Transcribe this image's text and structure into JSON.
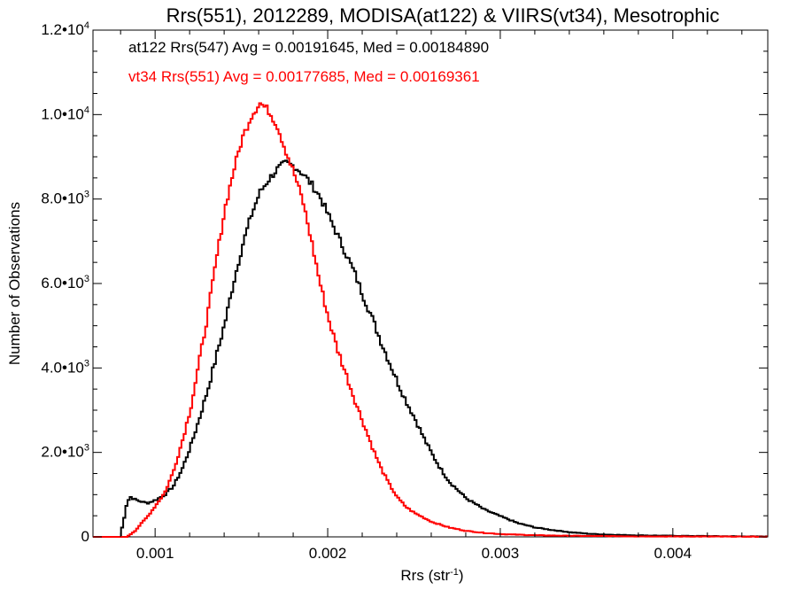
{
  "chart_data": {
    "type": "line",
    "title": "Rrs(551), 2012289, MODISA(at122) & VIIRS(vt34), Mesotrophic",
    "xlabel": "Rrs (str",
    "xlabel_sup": "-1",
    "xlabel_tail": ")",
    "ylabel": "Number of Observations",
    "xlim": [
      0.00064,
      0.00455
    ],
    "ylim": [
      0,
      12000
    ],
    "x_ticks": [
      {
        "value": 0.001,
        "label": "0.001"
      },
      {
        "value": 0.002,
        "label": "0.002"
      },
      {
        "value": 0.003,
        "label": "0.003"
      },
      {
        "value": 0.004,
        "label": "0.004"
      }
    ],
    "y_ticks": [
      {
        "value": 0,
        "label": "0",
        "sup": ""
      },
      {
        "value": 2000,
        "label": "2.0•10",
        "sup": "3"
      },
      {
        "value": 4000,
        "label": "4.0•10",
        "sup": "3"
      },
      {
        "value": 6000,
        "label": "6.0•10",
        "sup": "3"
      },
      {
        "value": 8000,
        "label": "8.0•10",
        "sup": "3"
      },
      {
        "value": 10000,
        "label": "1.0•10",
        "sup": "4"
      },
      {
        "value": 12000,
        "label": "1.2•10",
        "sup": "4"
      }
    ],
    "annotations": [
      {
        "text": "at122 Rrs(547) Avg = 0.00191645, Med = 0.00184890",
        "color": "#000000"
      },
      {
        "text": "vt34 Rrs(551) Avg = 0.00177685, Med = 0.00169361",
        "color": "#ff0000"
      }
    ],
    "series": [
      {
        "name": "at122 Rrs(547)",
        "color": "#000000",
        "points": [
          [
            0.00079,
            0
          ],
          [
            0.00081,
            350
          ],
          [
            0.00083,
            800
          ],
          [
            0.00085,
            950
          ],
          [
            0.00087,
            900
          ],
          [
            0.0009,
            850
          ],
          [
            0.00095,
            800
          ],
          [
            0.001,
            880
          ],
          [
            0.00105,
            1000
          ],
          [
            0.0011,
            1200
          ],
          [
            0.00115,
            1600
          ],
          [
            0.0012,
            2150
          ],
          [
            0.00125,
            2800
          ],
          [
            0.0013,
            3500
          ],
          [
            0.00135,
            4300
          ],
          [
            0.0014,
            5100
          ],
          [
            0.00145,
            6050
          ],
          [
            0.0015,
            6900
          ],
          [
            0.00155,
            7600
          ],
          [
            0.0016,
            8150
          ],
          [
            0.00165,
            8450
          ],
          [
            0.0017,
            8700
          ],
          [
            0.00175,
            8850
          ],
          [
            0.0018,
            8780
          ],
          [
            0.00185,
            8600
          ],
          [
            0.0019,
            8350
          ],
          [
            0.00195,
            8050
          ],
          [
            0.002,
            7600
          ],
          [
            0.00205,
            7150
          ],
          [
            0.0021,
            6700
          ],
          [
            0.00215,
            6250
          ],
          [
            0.0022,
            5700
          ],
          [
            0.00225,
            5200
          ],
          [
            0.0023,
            4650
          ],
          [
            0.00235,
            4150
          ],
          [
            0.0024,
            3650
          ],
          [
            0.00245,
            3200
          ],
          [
            0.0025,
            2800
          ],
          [
            0.00255,
            2350
          ],
          [
            0.0026,
            1950
          ],
          [
            0.00265,
            1600
          ],
          [
            0.0027,
            1300
          ],
          [
            0.00275,
            1100
          ],
          [
            0.0028,
            900
          ],
          [
            0.00285,
            780
          ],
          [
            0.0029,
            650
          ],
          [
            0.003,
            480
          ],
          [
            0.0031,
            320
          ],
          [
            0.0032,
            220
          ],
          [
            0.0033,
            160
          ],
          [
            0.0034,
            110
          ],
          [
            0.0035,
            75
          ],
          [
            0.0036,
            55
          ],
          [
            0.0038,
            35
          ],
          [
            0.004,
            25
          ],
          [
            0.0042,
            18
          ],
          [
            0.0044,
            12
          ],
          [
            0.00455,
            8
          ]
        ]
      },
      {
        "name": "vt34 Rrs(551)",
        "color": "#ff0000",
        "points": [
          [
            0.00083,
            0
          ],
          [
            0.00085,
            60
          ],
          [
            0.00088,
            150
          ],
          [
            0.0009,
            250
          ],
          [
            0.00095,
            480
          ],
          [
            0.001,
            760
          ],
          [
            0.00105,
            1050
          ],
          [
            0.0011,
            1550
          ],
          [
            0.00115,
            2250
          ],
          [
            0.0012,
            3050
          ],
          [
            0.00125,
            4150
          ],
          [
            0.0013,
            5300
          ],
          [
            0.00135,
            6600
          ],
          [
            0.0014,
            7800
          ],
          [
            0.00145,
            8700
          ],
          [
            0.0015,
            9450
          ],
          [
            0.00155,
            9950
          ],
          [
            0.0016,
            10280
          ],
          [
            0.00165,
            10100
          ],
          [
            0.0017,
            9750
          ],
          [
            0.00175,
            9150
          ],
          [
            0.0018,
            8600
          ],
          [
            0.00185,
            7950
          ],
          [
            0.0019,
            7000
          ],
          [
            0.00195,
            6000
          ],
          [
            0.002,
            5150
          ],
          [
            0.00205,
            4450
          ],
          [
            0.0021,
            3850
          ],
          [
            0.00215,
            3250
          ],
          [
            0.0022,
            2700
          ],
          [
            0.00225,
            2150
          ],
          [
            0.0023,
            1650
          ],
          [
            0.00235,
            1250
          ],
          [
            0.0024,
            920
          ],
          [
            0.00245,
            700
          ],
          [
            0.0025,
            560
          ],
          [
            0.0026,
            350
          ],
          [
            0.0027,
            220
          ],
          [
            0.0028,
            140
          ],
          [
            0.0029,
            95
          ],
          [
            0.003,
            65
          ],
          [
            0.0032,
            38
          ],
          [
            0.0034,
            25
          ],
          [
            0.0036,
            18
          ],
          [
            0.0038,
            12
          ],
          [
            0.004,
            10
          ],
          [
            0.0042,
            8
          ],
          [
            0.0044,
            6
          ],
          [
            0.00455,
            5
          ]
        ]
      }
    ]
  }
}
